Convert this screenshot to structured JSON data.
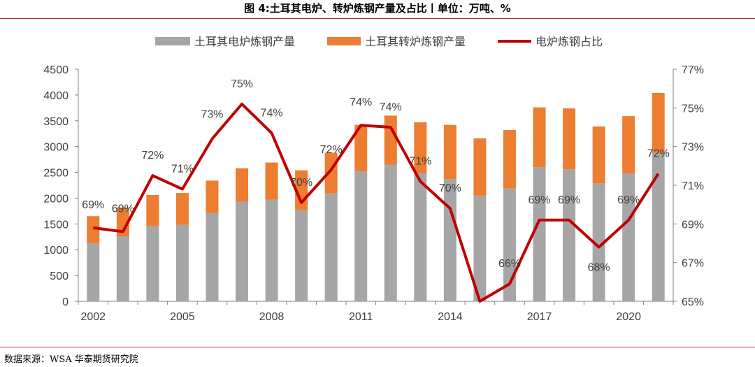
{
  "title": "图 4:土耳其电炉、转炉炼钢产量及占比丨单位：万吨、%",
  "source": "数据来源：WSA 华泰期货研究院",
  "colors": {
    "eaf": "#a6a6a6",
    "bof": "#ed7d31",
    "share": "#c00000",
    "rule": "#b8342a"
  },
  "chart_data": {
    "type": "bar",
    "stacked": true,
    "years": [
      2002,
      2003,
      2004,
      2005,
      2006,
      2007,
      2008,
      2009,
      2010,
      2011,
      2012,
      2013,
      2014,
      2015,
      2016,
      2017,
      2018,
      2019,
      2020,
      2021
    ],
    "x_tick_labels": [
      "2002",
      "2005",
      "2008",
      "2011",
      "2014",
      "2017",
      "2020"
    ],
    "series": [
      {
        "name": "土耳其电炉炼钢产量",
        "type": "bar",
        "axis": "left",
        "values": [
          1130,
          1260,
          1460,
          1480,
          1710,
          1930,
          1970,
          1770,
          2090,
          2520,
          2650,
          2480,
          2370,
          2050,
          2190,
          2600,
          2560,
          2290,
          2480,
          2880
        ]
      },
      {
        "name": "土耳其转炉炼钢产量",
        "type": "bar",
        "axis": "left",
        "values": [
          520,
          560,
          600,
          620,
          630,
          650,
          720,
          770,
          790,
          900,
          950,
          990,
          1050,
          1110,
          1130,
          1160,
          1180,
          1100,
          1110,
          1160
        ]
      },
      {
        "name": "电炉炼钢占比",
        "type": "line",
        "axis": "right",
        "values": [
          68.8,
          68.6,
          71.5,
          70.8,
          73.4,
          75.2,
          73.7,
          70.1,
          71.8,
          74.1,
          74.0,
          71.2,
          69.8,
          65.0,
          65.9,
          69.2,
          69.2,
          67.8,
          69.2,
          71.6
        ],
        "labels": [
          "69%",
          "69%",
          "72%",
          "71%",
          "73%",
          "75%",
          "74%",
          "70%",
          "72%",
          "74%",
          "74%",
          "71%",
          "70%",
          "",
          "66%",
          "69%",
          "69%",
          "68%",
          "69%",
          "72%"
        ]
      }
    ],
    "y_left": {
      "min": 0,
      "max": 4500,
      "ticks": [
        "0",
        "500",
        "1000",
        "1500",
        "2000",
        "2500",
        "3000",
        "3500",
        "4000",
        "4500"
      ]
    },
    "y_right": {
      "min": 65,
      "max": 77,
      "ticks": [
        "65%",
        "67%",
        "69%",
        "71%",
        "73%",
        "75%",
        "77%"
      ]
    },
    "legend_position": "top",
    "grid": false
  }
}
